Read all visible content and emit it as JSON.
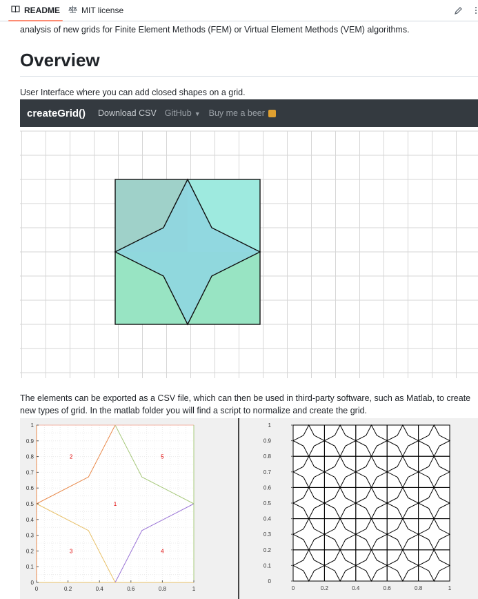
{
  "tabs": [
    {
      "label": "README",
      "icon": "book-icon"
    },
    {
      "label": "MIT license",
      "icon": "scale-icon"
    }
  ],
  "edit_icon": "pencil-icon",
  "intro_text": "analysis of new grids for Finite Element Methods (FEM) or Virtual Element Methods (VEM) algorithms.",
  "heading": "Overview",
  "ui_caption": "User Interface where you can add closed shapes on a grid.",
  "app_nav": {
    "brand": "createGrid()",
    "links": [
      "Download CSV",
      "GitHub",
      "Buy me a beer"
    ]
  },
  "export_text": "The elements can be exported as a CSV file, which can then be used in third-party software, such as Matlab, to create new types of grid. In the matlab folder you will find a script to normalize and create the grid.",
  "colors": {
    "square_top_left": "#9fd1c9",
    "square_top_right": "#9eeadf",
    "square_bottom": "#98e4c3",
    "star": "#8fd6e0",
    "navbar": "#343a40"
  },
  "chart_data": [
    {
      "type": "line",
      "xlim": [
        0,
        1
      ],
      "ylim": [
        0,
        1
      ],
      "xticks": [
        "0",
        "0.2",
        "0.4",
        "0.6",
        "0.8",
        "1"
      ],
      "yticks": [
        "0",
        "0.1",
        "0.2",
        "0.3",
        "0.4",
        "0.5",
        "0.6",
        "0.7",
        "0.8",
        "0.9",
        "1"
      ],
      "grid": true,
      "series": [
        {
          "values": [
            [
              0,
              0.5
            ],
            [
              0.33,
              0.67
            ],
            [
              0.5,
              1
            ]
          ],
          "color": "#e8894a"
        },
        {
          "values": [
            [
              0.5,
              1
            ],
            [
              0.67,
              0.67
            ],
            [
              1,
              0.5
            ]
          ],
          "color": "#a6c87a"
        },
        {
          "values": [
            [
              0,
              0.5
            ],
            [
              0.33,
              0.33
            ],
            [
              0.5,
              0
            ]
          ],
          "color": "#e8c068"
        },
        {
          "values": [
            [
              0.5,
              0
            ],
            [
              0.67,
              0.33
            ],
            [
              1,
              0.5
            ]
          ],
          "color": "#9a74d6"
        },
        {
          "values": [
            [
              0,
              0
            ],
            [
              0,
              1
            ]
          ],
          "color": "#e8894a"
        },
        {
          "values": [
            [
              0,
              1
            ],
            [
              1,
              1
            ]
          ],
          "color": "#f2b0a0"
        },
        {
          "values": [
            [
              1,
              0
            ],
            [
              1,
              1
            ]
          ],
          "color": "#a6c87a"
        },
        {
          "values": [
            [
              0,
              0
            ],
            [
              1,
              0
            ]
          ],
          "color": "#e8c068"
        }
      ],
      "labels": [
        {
          "text": "1",
          "x": 0.5,
          "y": 0.5
        },
        {
          "text": "2",
          "x": 0.22,
          "y": 0.8
        },
        {
          "text": "3",
          "x": 0.22,
          "y": 0.2
        },
        {
          "text": "4",
          "x": 0.8,
          "y": 0.2
        },
        {
          "text": "5",
          "x": 0.8,
          "y": 0.8
        }
      ]
    },
    {
      "type": "line",
      "xlim": [
        0,
        1
      ],
      "ylim": [
        0,
        1
      ],
      "xticks": [
        "0",
        "0.2",
        "0.4",
        "0.6",
        "0.8",
        "1"
      ],
      "yticks": [
        "0",
        "0.1",
        "0.2",
        "0.3",
        "0.4",
        "0.5",
        "0.6",
        "0.7",
        "0.8",
        "0.9",
        "1"
      ],
      "tile_count": 5,
      "tile_domain": [
        0,
        1
      ]
    }
  ]
}
